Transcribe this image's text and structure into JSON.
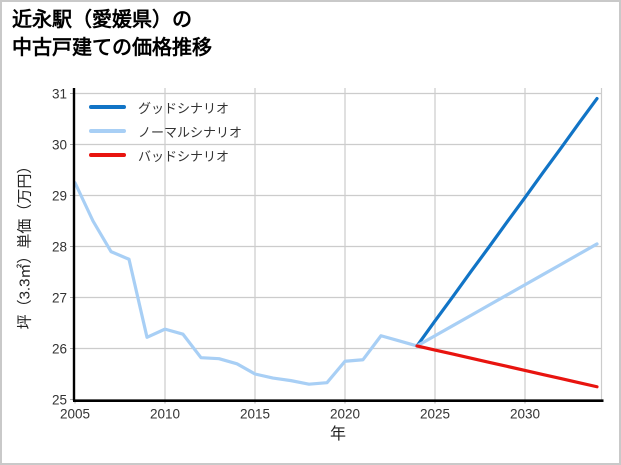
{
  "title": {
    "line1": "近永駅（愛媛県）の",
    "line2": "中古戸建ての価格推移"
  },
  "colors": {
    "good": "#1174c6",
    "normal": "#a8cff5",
    "bad": "#e8140f",
    "grid": "#cccccc",
    "spine": "#000000",
    "tick": "#aaaaaa",
    "tick_label": "#333333"
  },
  "chart_data": {
    "type": "line",
    "title": "近永駅（愛媛県）の中古戸建ての価格推移",
    "xlabel": "年",
    "ylabel": "坪（3.3㎡）単価（万円）",
    "xlim": [
      2005,
      2034.25
    ],
    "ylim": [
      25,
      31
    ],
    "xticks": [
      2005,
      2010,
      2015,
      2020,
      2025,
      2030
    ],
    "yticks": [
      25,
      26,
      27,
      28,
      29,
      30,
      31
    ],
    "grid": true,
    "legend_position": "upper-left",
    "series": [
      {
        "id": "good",
        "name": "グッドシナリオ",
        "color": "#1174c6",
        "in_legend": true,
        "x": [
          2024,
          2025,
          2026,
          2027,
          2028,
          2029,
          2030,
          2031,
          2032,
          2033,
          2034
        ],
        "values": [
          26.05,
          26.54,
          27.02,
          27.51,
          27.99,
          28.48,
          28.96,
          29.45,
          29.93,
          30.42,
          30.9
        ]
      },
      {
        "id": "normal",
        "name": "ノーマルシナリオ",
        "color": "#a8cff5",
        "in_legend": true,
        "x": [
          2024,
          2025,
          2026,
          2027,
          2028,
          2029,
          2030,
          2031,
          2032,
          2033,
          2034
        ],
        "values": [
          26.05,
          26.25,
          26.45,
          26.65,
          26.85,
          27.05,
          27.25,
          27.45,
          27.65,
          27.85,
          28.05
        ]
      },
      {
        "id": "bad",
        "name": "バッドシナリオ",
        "color": "#e8140f",
        "in_legend": true,
        "x": [
          2024,
          2025,
          2026,
          2027,
          2028,
          2029,
          2030,
          2031,
          2032,
          2033,
          2034
        ],
        "values": [
          26.05,
          25.97,
          25.89,
          25.81,
          25.73,
          25.65,
          25.57,
          25.49,
          25.41,
          25.33,
          25.25
        ]
      },
      {
        "id": "historical",
        "in_legend": false,
        "color": "#a8cff5",
        "x": [
          2005,
          2006,
          2007,
          2008,
          2009,
          2010,
          2011,
          2012,
          2013,
          2014,
          2015,
          2016,
          2017,
          2018,
          2019,
          2020,
          2021,
          2022,
          2023,
          2024
        ],
        "values": [
          29.25,
          28.5,
          27.9,
          27.75,
          26.22,
          26.38,
          26.28,
          25.82,
          25.8,
          25.7,
          25.5,
          25.42,
          25.37,
          25.3,
          25.33,
          25.75,
          25.78,
          26.25,
          26.15,
          26.05
        ]
      }
    ]
  }
}
